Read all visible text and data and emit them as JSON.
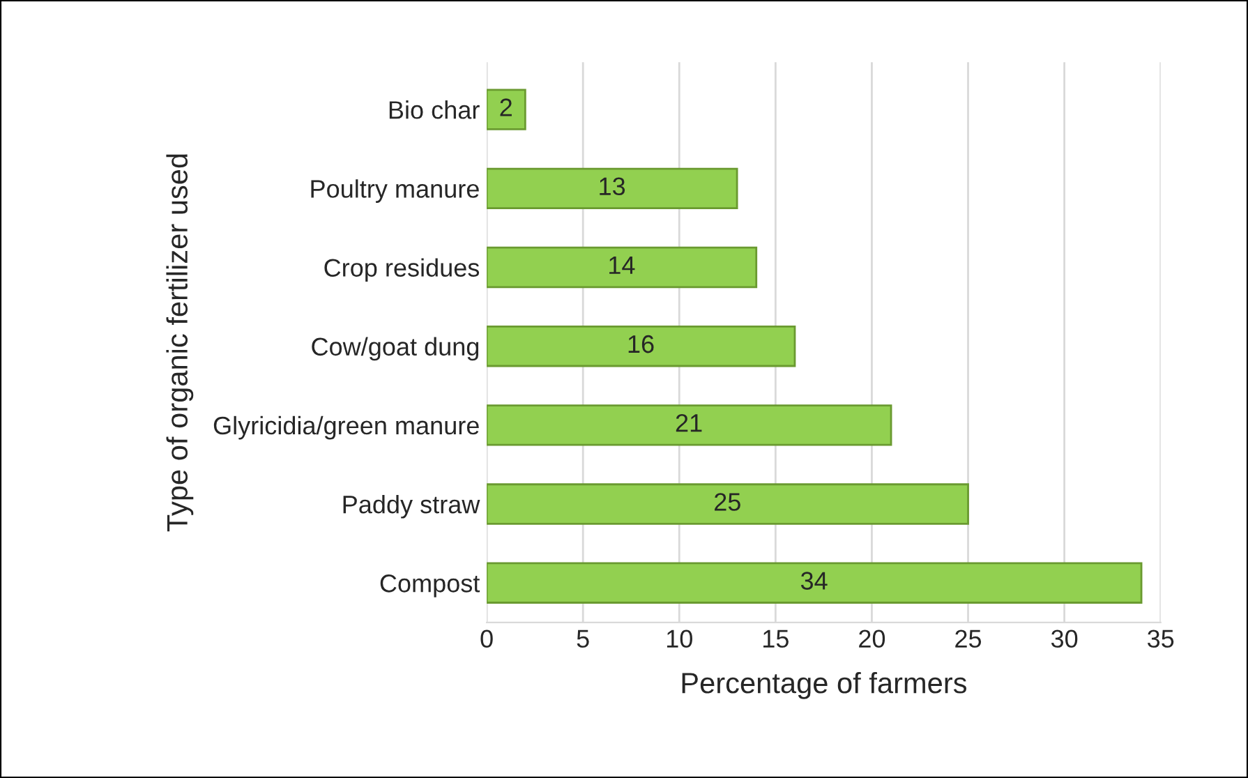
{
  "chart_data": {
    "type": "bar",
    "orientation": "horizontal",
    "xlabel": "Percentage of farmers",
    "ylabel": "Type of organic fertilizer used",
    "categories": [
      "Bio char",
      "Poultry manure",
      "Crop residues",
      "Cow/goat dung",
      "Glyricidia/green manure",
      "Paddy straw",
      "Compost"
    ],
    "values": [
      2,
      13,
      14,
      16,
      21,
      25,
      34
    ],
    "color": "#92d050",
    "xlim": [
      0,
      35
    ],
    "xticks": [
      0,
      5,
      10,
      15,
      20,
      25,
      30,
      35
    ],
    "grid": "x",
    "data_labels": true
  }
}
